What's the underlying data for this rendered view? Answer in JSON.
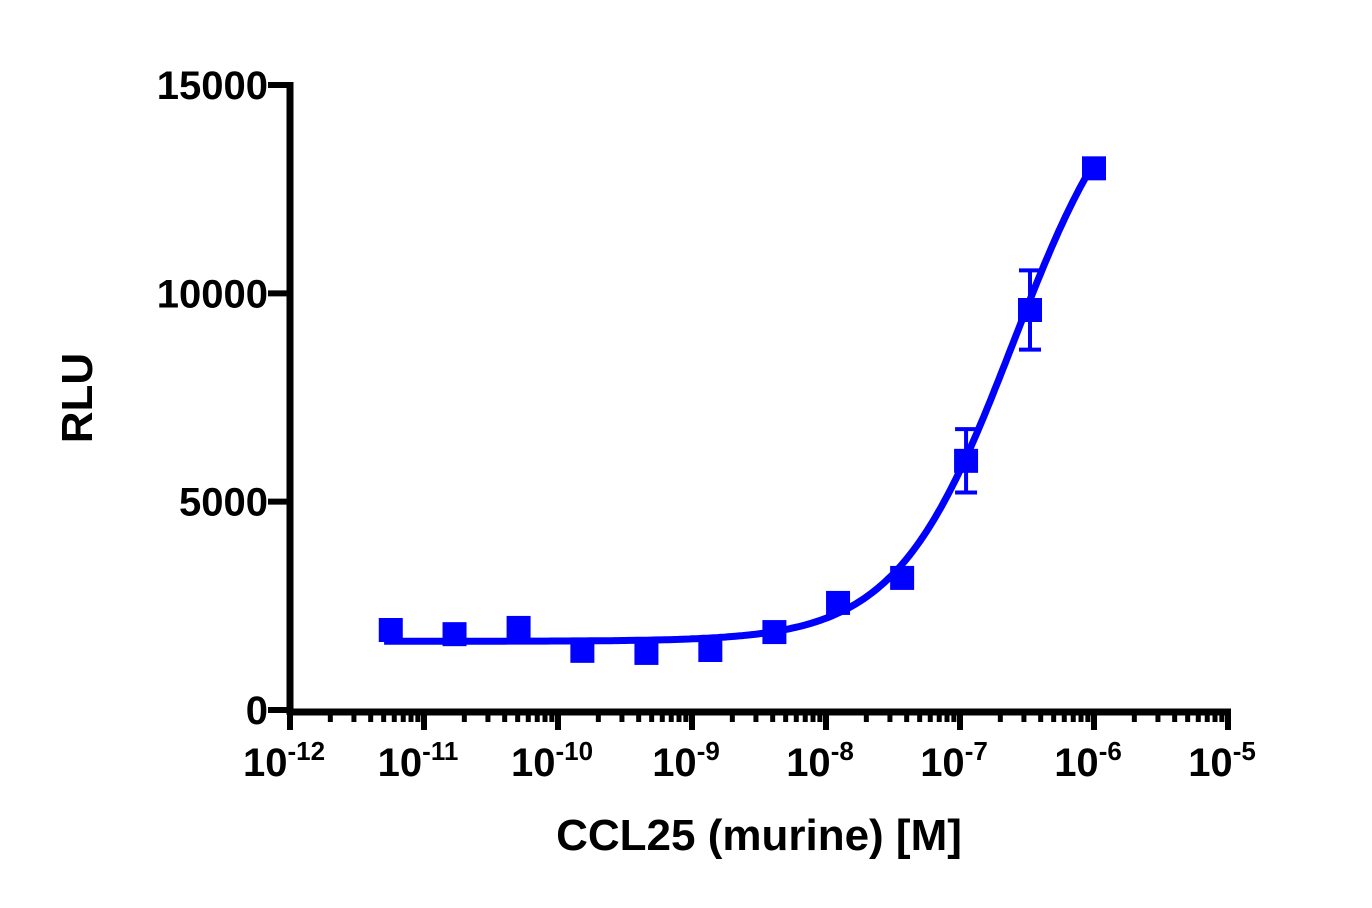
{
  "chart_data": {
    "type": "scatter",
    "title": "",
    "xlabel": "CCL25 (murine) [M]",
    "ylabel": "RLU",
    "x_scale": "log",
    "xlim": [
      1e-12,
      1e-05
    ],
    "ylim": [
      0,
      15000
    ],
    "x_ticks": [
      {
        "base": "10",
        "exp": "-12"
      },
      {
        "base": "10",
        "exp": "-11"
      },
      {
        "base": "10",
        "exp": "-10"
      },
      {
        "base": "10",
        "exp": "-9"
      },
      {
        "base": "10",
        "exp": "-8"
      },
      {
        "base": "10",
        "exp": "-7"
      },
      {
        "base": "10",
        "exp": "-6"
      },
      {
        "base": "10",
        "exp": "-5"
      }
    ],
    "y_ticks": [
      "0",
      "5000",
      "10000",
      "15000"
    ],
    "grid": false,
    "color": "#0000ff",
    "series": [
      {
        "marker": "square",
        "fit_curve": "sigmoidal dose-response",
        "x": [
          5.65e-12,
          1.69e-11,
          5.08e-11,
          1.52e-10,
          4.57e-10,
          1.37e-09,
          4.12e-09,
          1.23e-08,
          3.7e-08,
          1.11e-07,
          3.33e-07,
          1e-06
        ],
        "y": [
          1920,
          1820,
          1970,
          1420,
          1370,
          1440,
          1870,
          2570,
          3170,
          5980,
          9600,
          13000
        ],
        "error": [
          0,
          0,
          0,
          0,
          0,
          0,
          0,
          0,
          0,
          760,
          950,
          0
        ]
      }
    ]
  }
}
